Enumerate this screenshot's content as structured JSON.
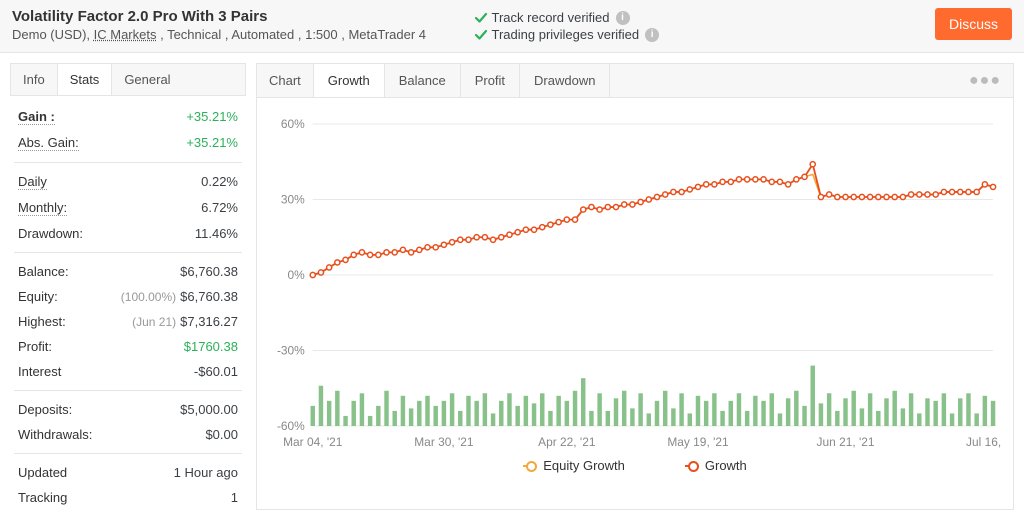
{
  "header": {
    "title": "Volatility Factor 2.0 Pro With 3 Pairs",
    "subtitle_prefix": "Demo (USD), ",
    "broker": "IC Markets",
    "subtitle_suffix": " , Technical , Automated , 1:500 , MetaTrader 4",
    "verify1": "Track record verified",
    "verify2": "Trading privileges verified",
    "discuss": "Discuss"
  },
  "leftTabs": {
    "info": "Info",
    "stats": "Stats",
    "general": "General",
    "active": "Stats"
  },
  "stats": {
    "gain_label": "Gain :",
    "gain_value": "+35.21%",
    "absgain_label": "Abs. Gain:",
    "absgain_value": "+35.21%",
    "daily_label": "Daily",
    "daily_value": "0.22%",
    "monthly_label": "Monthly:",
    "monthly_value": "6.72%",
    "dd_label": "Drawdown:",
    "dd_value": "11.46%",
    "balance_label": "Balance:",
    "balance_value": "$6,760.38",
    "equity_label": "Equity:",
    "equity_note": "(100.00%)",
    "equity_value": "$6,760.38",
    "highest_label": "Highest:",
    "highest_note": "(Jun 21)",
    "highest_value": "$7,316.27",
    "profit_label": "Profit:",
    "profit_value": "$1760.38",
    "interest_label": "Interest",
    "interest_value": "-$60.01",
    "deposits_label": "Deposits:",
    "deposits_value": "$5,000.00",
    "withdraw_label": "Withdrawals:",
    "withdraw_value": "$0.00",
    "updated_label": "Updated",
    "updated_value": "1 Hour ago",
    "tracking_label": "Tracking",
    "tracking_value": "1"
  },
  "chartTabs": {
    "label": "Chart",
    "growth": "Growth",
    "balance": "Balance",
    "profit": "Profit",
    "drawdown": "Drawdown",
    "active": "Growth"
  },
  "chart": {
    "type": "line+bar",
    "ylabels": [
      "60%",
      "30%",
      "0%",
      "-30%",
      "-60%"
    ],
    "xlabels": [
      "Mar 04, '21",
      "Mar 30, '21",
      "Apr 22, '21",
      "May 19, '21",
      "Jun 21, '21",
      "Jul 16, '21"
    ],
    "line_color": "#e84f1d",
    "line_marker_fill": "#ffffff",
    "equity_color": "#f2a93b",
    "bar_color": "#88c28a",
    "grid_color": "#e8e8e8",
    "text_color": "#888",
    "background": "#ffffff",
    "ymin": -60,
    "ymax": 60,
    "growth": [
      0,
      1,
      3,
      5,
      6,
      8,
      9,
      8,
      8,
      9,
      9,
      10,
      9,
      10,
      11,
      11,
      12,
      13,
      14,
      14,
      15,
      15,
      14,
      15,
      16,
      17,
      18,
      18,
      19,
      20,
      21,
      22,
      22,
      26,
      27,
      26,
      27,
      27,
      28,
      28,
      29,
      30,
      31,
      32,
      33,
      33,
      34,
      35,
      36,
      36,
      37,
      37,
      38,
      38,
      38,
      38,
      37,
      37,
      36,
      38,
      39,
      44,
      31,
      32,
      31,
      31,
      31,
      31,
      31,
      31,
      31,
      31,
      31,
      32,
      32,
      32,
      32,
      33,
      33,
      33,
      33,
      33,
      36,
      35
    ],
    "equity": [
      0,
      1,
      3,
      5,
      6,
      8,
      9,
      8,
      8,
      9,
      9,
      10,
      9,
      10,
      11,
      11,
      12,
      13,
      14,
      14,
      15,
      15,
      14,
      15,
      16,
      17,
      18,
      18,
      19,
      20,
      21,
      22,
      22,
      26,
      27,
      26,
      27,
      27,
      28,
      28,
      29,
      30,
      31,
      32,
      33,
      33,
      34,
      35,
      36,
      36,
      37,
      37,
      38,
      38,
      38,
      38,
      37,
      37,
      36,
      38,
      39,
      40,
      31,
      32,
      31,
      31,
      31,
      31,
      31,
      31,
      31,
      31,
      31,
      32,
      32,
      32,
      32,
      33,
      33,
      33,
      33,
      33,
      36,
      35
    ],
    "bars": [
      -52,
      -44,
      -50,
      -46,
      -56,
      -50,
      -47,
      -56,
      -52,
      -46,
      -54,
      -48,
      -53,
      -50,
      -48,
      -52,
      -50,
      -47,
      -54,
      -48,
      -50,
      -47,
      -55,
      -50,
      -47,
      -52,
      -48,
      -51,
      -47,
      -54,
      -48,
      -50,
      -46,
      -41,
      -54,
      -47,
      -54,
      -49,
      -46,
      -53,
      -47,
      -55,
      -50,
      -46,
      -53,
      -47,
      -55,
      -48,
      -50,
      -47,
      -54,
      -50,
      -47,
      -54,
      -48,
      -50,
      -47,
      -55,
      -49,
      -46,
      -52,
      -36,
      -51,
      -47,
      -54,
      -49,
      -46,
      -53,
      -47,
      -54,
      -49,
      -46,
      -53,
      -47,
      -55,
      -49,
      -50,
      -47,
      -55,
      -49,
      -47,
      -55,
      -48,
      -50
    ]
  },
  "legend": {
    "equity": "Equity Growth",
    "growth": "Growth"
  }
}
